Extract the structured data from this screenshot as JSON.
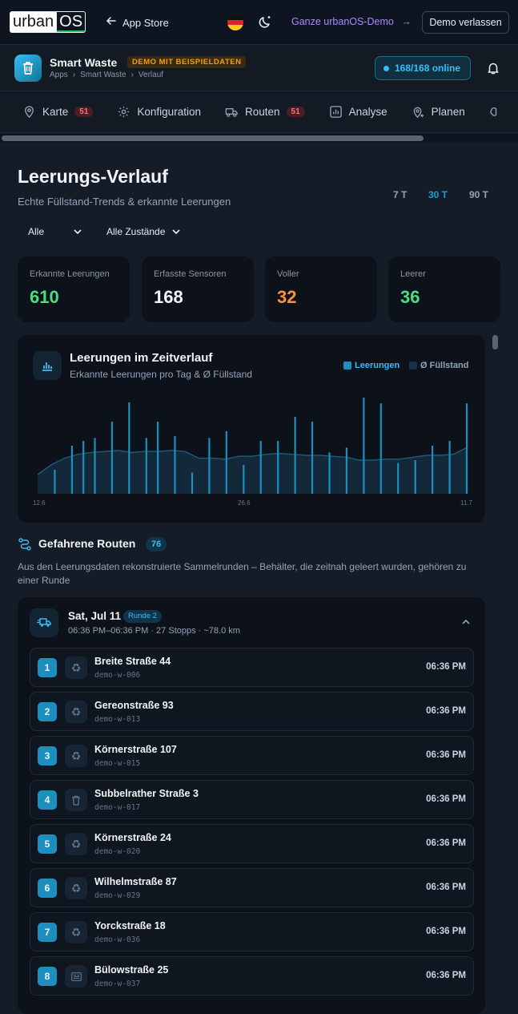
{
  "topbar": {
    "logo_left": "urban",
    "logo_right": "OS",
    "back_label": "App Store",
    "demo_link": "Ganze urbanOS-Demo",
    "leave_label": "Demo verlassen",
    "icons": [
      "arrow-left-icon",
      "flag-de-icon",
      "moon-icon",
      "arrow-right-icon"
    ]
  },
  "app": {
    "title": "Smart Waste",
    "badge": "DEMO MIT BEISPIELDATEN",
    "breadcrumb": [
      "Apps",
      "Smart Waste",
      "Verlauf"
    ],
    "online": "168/168 online",
    "icons": [
      "trash-icon",
      "bell-icon"
    ]
  },
  "tabs": [
    {
      "label": "Karte",
      "count": "51",
      "icon": "map-pin-icon"
    },
    {
      "label": "Konfiguration",
      "count": null,
      "icon": "gear-icon"
    },
    {
      "label": "Routen",
      "count": "51",
      "icon": "truck-icon"
    },
    {
      "label": "Analyse",
      "count": null,
      "icon": "bar-chart-icon"
    },
    {
      "label": "Planen",
      "count": null,
      "icon": "map-pin-plus-icon"
    }
  ],
  "page": {
    "title": "Leerungs-Verlauf",
    "subtitle": "Echte Füllstand-Trends & erkannte Leerungen",
    "ranges": [
      "7 T",
      "30 T",
      "90 T"
    ],
    "active_range": "30 T",
    "filters": [
      "Alle",
      "Alle Zustände"
    ]
  },
  "kpis": [
    {
      "label": "Erkannte Leerungen",
      "value": "610",
      "color": "#4ade80"
    },
    {
      "label": "Erfasste Sensoren",
      "value": "168",
      "color": "#f1f5f9"
    },
    {
      "label": "Voller",
      "value": "32",
      "color": "#fb923c"
    },
    {
      "label": "Leerer",
      "value": "36",
      "color": "#4ade80"
    }
  ],
  "chart": {
    "title": "Leerungen im Zeitverlauf",
    "subtitle": "Erkannte Leerungen pro Tag & Ø Füllstand",
    "legend": [
      "Leerungen",
      "Ø Füllstand"
    ],
    "colors": {
      "bars": "#1c8fbf",
      "area": "#153246"
    }
  },
  "chart_data": {
    "type": "bar",
    "x_ticks": [
      "12.6",
      "26.6",
      "11.7"
    ],
    "series": [
      {
        "name": "Leerungen",
        "values": [
          0,
          0,
          0,
          25,
          0,
          0,
          50,
          0,
          55,
          0,
          58,
          0,
          0,
          75,
          0,
          0,
          95,
          0,
          0,
          58,
          0,
          75,
          0,
          0,
          60,
          0,
          0,
          22,
          0,
          0,
          58,
          0,
          0,
          65,
          0,
          0,
          30,
          0,
          0,
          55,
          0,
          0,
          55,
          0,
          0,
          80,
          0,
          0,
          75,
          0,
          0,
          43,
          0,
          0,
          48,
          0,
          0,
          100,
          0,
          0,
          94,
          0,
          0,
          32,
          0,
          0,
          35,
          0,
          0,
          50,
          0,
          0,
          55,
          0,
          0,
          94
        ]
      },
      {
        "name": "Ø Füllstand",
        "values": [
          20,
          30,
          37,
          41,
          43,
          44,
          45,
          43,
          44,
          44,
          45,
          44,
          37,
          37,
          36,
          39,
          39,
          41,
          42,
          41,
          40,
          40,
          39,
          38,
          35,
          35,
          36,
          36,
          38,
          40,
          40,
          41,
          48
        ]
      }
    ]
  },
  "routes": {
    "title": "Gefahrene Routen",
    "count": "76",
    "description": "Aus den Leerungsdaten rekonstruierte Sammelrunden – Behälter, die zeitnah geleert wurden, gehören zu einer Runde",
    "card": {
      "title": "Sat, Jul 11",
      "badge": "Runde 2",
      "subtitle": "06:36 PM–06:36 PM · 27 Stopps · ~78.0 km"
    },
    "stops": [
      {
        "n": "1",
        "name": "Breite Straße 44",
        "id": "demo-w-006",
        "time": "06:36 PM",
        "icon": "recycle-icon"
      },
      {
        "n": "2",
        "name": "Gereonstraße 93",
        "id": "demo-w-013",
        "time": "06:36 PM",
        "icon": "recycle-icon"
      },
      {
        "n": "3",
        "name": "Körnerstraße 107",
        "id": "demo-w-015",
        "time": "06:36 PM",
        "icon": "recycle-icon"
      },
      {
        "n": "4",
        "name": "Subbelrather Straße 3",
        "id": "demo-w-017",
        "time": "06:36 PM",
        "icon": "trash-icon"
      },
      {
        "n": "5",
        "name": "Körnerstraße 24",
        "id": "demo-w-020",
        "time": "06:36 PM",
        "icon": "recycle-icon"
      },
      {
        "n": "6",
        "name": "Wilhelmstraße 87",
        "id": "demo-w-029",
        "time": "06:36 PM",
        "icon": "recycle-icon"
      },
      {
        "n": "7",
        "name": "Yorckstraße 18",
        "id": "demo-w-036",
        "time": "06:36 PM",
        "icon": "recycle-icon"
      },
      {
        "n": "8",
        "name": "Bülowstraße 25",
        "id": "demo-w-037",
        "time": "06:36 PM",
        "icon": "newspaper-icon"
      }
    ]
  }
}
